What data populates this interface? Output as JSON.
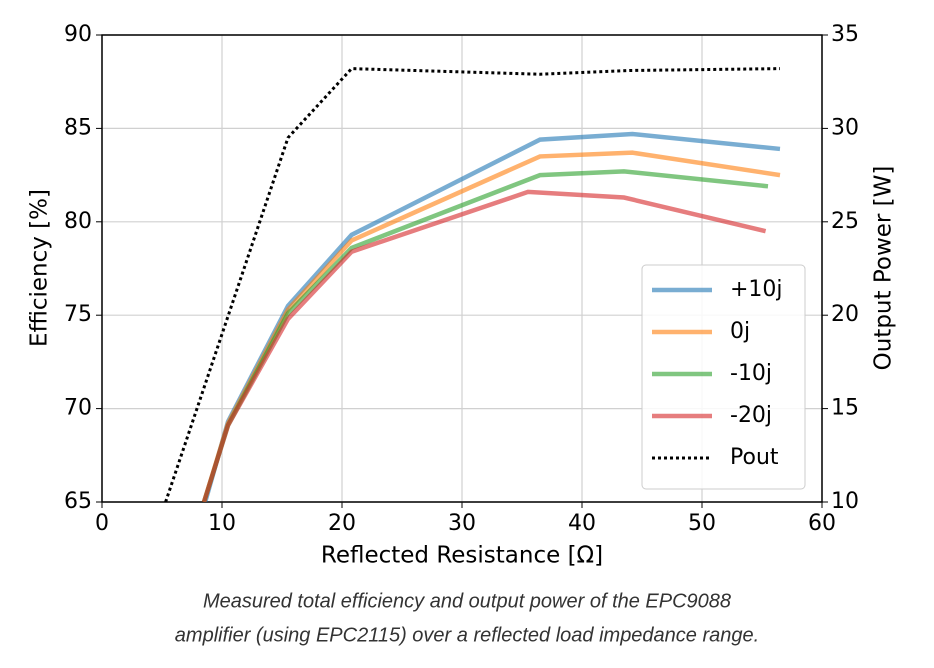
{
  "chart_data": {
    "type": "line",
    "xlabel": "Reflected Resistance [Ω]",
    "ylabel": "Efficiency [%]",
    "y2label": "Output Power [W]",
    "xlim": [
      0,
      60
    ],
    "xticks": [
      0,
      10,
      20,
      30,
      40,
      50,
      60
    ],
    "ylim": [
      65,
      90
    ],
    "yticks": [
      65,
      70,
      75,
      80,
      85,
      90
    ],
    "y2lim": [
      10,
      35
    ],
    "y2ticks": [
      10,
      15,
      20,
      25,
      30,
      35
    ],
    "grid": true,
    "legend": "lower right",
    "alpha": 0.6,
    "series": [
      {
        "name": "+10j",
        "color": "#1f77b4",
        "style": "solid",
        "x": [
          8.6,
          10.5,
          15.5,
          20.8,
          36.5,
          44.2,
          56.5
        ],
        "values": [
          65,
          69.3,
          75.5,
          79.3,
          84.4,
          84.7,
          83.9
        ]
      },
      {
        "name": "0j",
        "color": "#ff7f0e",
        "style": "solid",
        "x": [
          8.5,
          10.5,
          15.5,
          20.8,
          36.5,
          44.2,
          56.5
        ],
        "values": [
          65,
          69.2,
          75.3,
          79.0,
          83.5,
          83.7,
          82.5
        ]
      },
      {
        "name": "-10j",
        "color": "#2ca02c",
        "style": "solid",
        "x": [
          8.5,
          10.5,
          15.5,
          20.8,
          36.5,
          43.5,
          55.5
        ],
        "values": [
          65,
          69.1,
          75.1,
          78.6,
          82.5,
          82.7,
          81.9
        ]
      },
      {
        "name": "-20j",
        "color": "#d62728",
        "style": "solid",
        "x": [
          8.5,
          10.5,
          15.5,
          20.8,
          35.5,
          43.5,
          55.3
        ],
        "values": [
          65,
          69.1,
          74.8,
          78.4,
          81.6,
          81.3,
          79.5
        ]
      },
      {
        "name": "Pout",
        "color": "#000000",
        "style": "dotted",
        "axis": "y2",
        "x": [
          5.3,
          15.5,
          20.8,
          36.5,
          44,
          56.5
        ],
        "values": [
          10,
          29.5,
          33.2,
          32.9,
          33.1,
          33.2
        ]
      }
    ]
  },
  "caption": [
    "Measured total efficiency and output power of the EPC9088",
    "amplifier (using EPC2115) over a reflected load impedance range."
  ]
}
